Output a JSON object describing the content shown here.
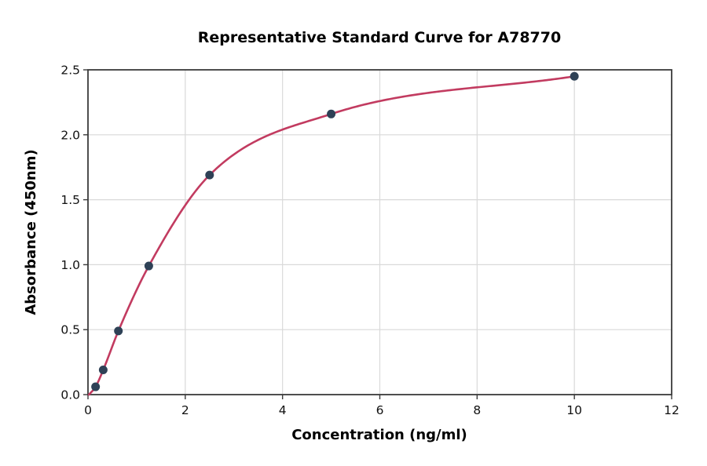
{
  "chart_data": {
    "type": "scatter",
    "title": "Representative Standard Curve for A78770",
    "xlabel": "Concentration (ng/ml)",
    "ylabel": "Absorbance (450nm)",
    "xlim": [
      0,
      12
    ],
    "ylim": [
      0.0,
      2.5
    ],
    "x_ticks": [
      0,
      2,
      4,
      6,
      8,
      10,
      12
    ],
    "x_tick_labels": [
      "0",
      "2",
      "4",
      "6",
      "8",
      "10",
      "12"
    ],
    "y_ticks": [
      0.0,
      0.5,
      1.0,
      1.5,
      2.0,
      2.5
    ],
    "y_tick_labels": [
      "0.0",
      "0.5",
      "1.0",
      "1.5",
      "2.0",
      "2.5"
    ],
    "grid": true,
    "legend": "none",
    "series": [
      {
        "name": "standards",
        "type": "scatter",
        "marker": "circle",
        "marker_color": "#2e4156",
        "marker_radius": 5.5,
        "x": [
          0.156,
          0.313,
          0.625,
          1.25,
          2.5,
          5,
          10
        ],
        "y": [
          0.06,
          0.19,
          0.49,
          0.99,
          1.69,
          2.16,
          2.45
        ]
      },
      {
        "name": "fit-curve",
        "type": "line",
        "line_color": "#c23b60",
        "x_start": 0.02,
        "y_start": 0.0,
        "x_end": 10,
        "note": "smooth fit passing through the standards points"
      }
    ],
    "colors": {
      "frame": "#3b3b3b",
      "grid": "#d9d9d9",
      "background": "#ffffff",
      "text": "#000000"
    }
  }
}
